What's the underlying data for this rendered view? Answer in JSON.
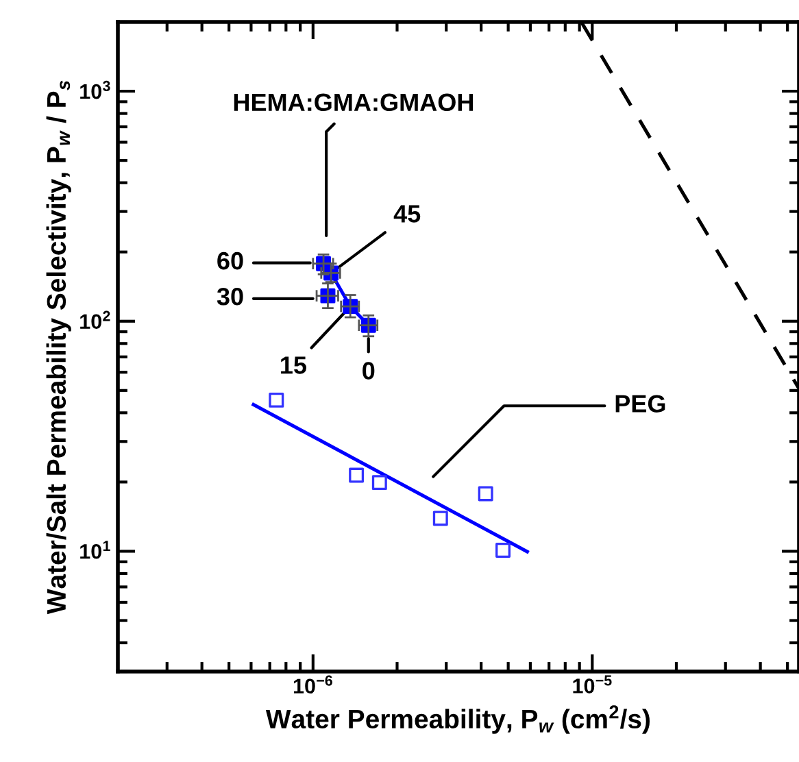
{
  "chart_data": {
    "type": "scatter",
    "xlabel": "Water Permeability, P$_{w}$ (cm$^{2}$/s)",
    "ylabel": "Water/Salt Permeability Selectivity, P$_{w}$ / P$_{s}$",
    "log": "xy",
    "xlim": [
      2e-07,
      5.5e-05
    ],
    "ylim": [
      3,
      2000
    ],
    "xticks": [
      {
        "value": 1e-06,
        "label": "10$^{−6}$"
      },
      {
        "value": 1e-05,
        "label": "10$^{−5}$"
      }
    ],
    "yticks": [
      {
        "value": 10,
        "label": "10$^{1}$"
      },
      {
        "value": 100,
        "label": "10$^{2}$"
      },
      {
        "value": 1000,
        "label": "10$^{3}$"
      }
    ],
    "grid": false,
    "series": [
      {
        "type": "line",
        "color": "#0000ff",
        "marker": "none",
        "line_style": "solid",
        "x": [
          1.16e-06,
          1.36e-06,
          1.58e-06
        ],
        "values": [
          162,
          116,
          96
        ]
      },
      {
        "color": "#0000ff",
        "marker": "square",
        "x": [
          1.09e-06,
          1.16e-06,
          1.13e-06,
          1.36e-06,
          1.58e-06
        ],
        "values": [
          178,
          162,
          129,
          116,
          96
        ],
        "errors": [
          [
            160,
            195
          ],
          [
            148,
            178
          ],
          [
            114,
            146
          ],
          [
            104,
            130
          ],
          [
            86,
            106
          ]
        ],
        "xerrors": [
          9e-08,
          9e-08,
          1e-07,
          1e-07,
          1.2e-07
        ]
      },
      {
        "type": "line",
        "color": "#0000ff",
        "marker": "none",
        "line_style": "solid",
        "x": [
          6.12e-07,
          5.85e-06
        ],
        "values": [
          43.4,
          9.96
        ]
      },
      {
        "color": "#3333ff",
        "marker": "square",
        "x": [
          7.39e-07,
          1.43e-06,
          1.73e-06,
          2.86e-06,
          4.15e-06,
          4.79e-06
        ],
        "values": [
          45.4,
          21.4,
          19.9,
          13.9,
          17.8,
          10.1
        ]
      },
      {
        "type": "line",
        "color": "#000000",
        "marker": "none",
        "line_style": "dashed",
        "x": [
          9.18e-06,
          5.47e-05
        ],
        "values": [
          1980,
          51.5
        ]
      }
    ],
    "annotations": [
      "HEMA:GMA:GMAOH",
      "60",
      {
        "text": "45",
        "x": 1.16e-06,
        "y": 162
      },
      "30",
      {
        "text": "15",
        "x": 1.36e-06,
        "y": 116
      },
      {
        "text": "0",
        "x": 1.58e-06,
        "y": 96
      },
      "PEG"
    ]
  }
}
